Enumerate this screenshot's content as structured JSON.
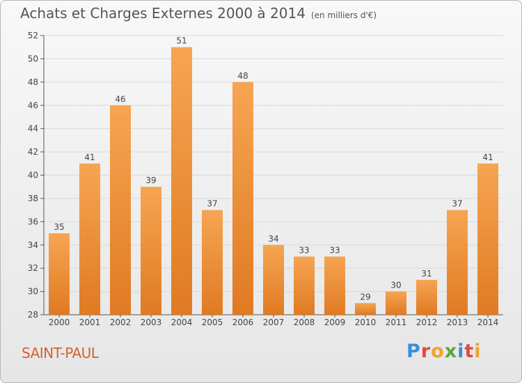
{
  "header": {
    "title": "Achats et Charges Externes 2000 à 2014",
    "unit": "(en milliers d'€)"
  },
  "footer": {
    "town": "SAINT-PAUL",
    "logo": "Proxiti"
  },
  "colors": {
    "bar_top": "#f6a552",
    "bar_bottom": "#e07a22",
    "grid": "#d9d9d9",
    "title": "#555555",
    "town": "#d2622c"
  },
  "chart_data": {
    "type": "bar",
    "title": "Achats et Charges Externes 2000 à 2014",
    "categories": [
      "2000",
      "2001",
      "2002",
      "2003",
      "2004",
      "2005",
      "2006",
      "2007",
      "2008",
      "2009",
      "2010",
      "2011",
      "2012",
      "2013",
      "2014"
    ],
    "values": [
      35,
      41,
      46,
      39,
      51,
      37,
      48,
      34,
      33,
      33,
      29,
      30,
      31,
      37,
      41
    ],
    "ylim": [
      28,
      52
    ],
    "yticks": [
      28,
      30,
      32,
      34,
      36,
      38,
      40,
      42,
      44,
      46,
      48,
      50,
      52
    ],
    "grid": true
  }
}
